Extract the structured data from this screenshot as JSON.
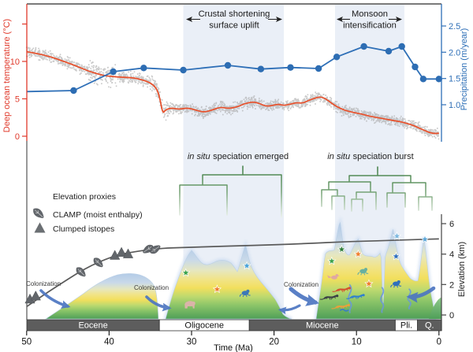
{
  "axes": {
    "temp_label": "Deep ocean temperature (°C)",
    "temp_ticks": [
      "10",
      "5",
      "0"
    ],
    "precip_label": "Precipitation (m/year)",
    "precip_ticks": [
      "2.5",
      "2.0",
      "1.5",
      "1.0"
    ],
    "elev_label": "Elevation (km)",
    "elev_ticks": [
      "6",
      "4",
      "2",
      "0"
    ],
    "time_label": "Time (Ma)",
    "time_ticks": [
      "50",
      "40",
      "30",
      "20",
      "10",
      "0"
    ]
  },
  "annotations": {
    "crustal_line1": "Crustal shortening",
    "crustal_line2": "surface uplift",
    "monsoon_line1": "Monsoon",
    "monsoon_line2": "intensification",
    "speciation_emerged_italic": "in situ",
    "speciation_emerged_rest": "speciation emerged",
    "speciation_burst_italic": "in situ",
    "speciation_burst_rest": "speciation burst",
    "colonization": "Colonization"
  },
  "legend": {
    "title": "Elevation proxies",
    "clamp": "CLAMP (moist enthalpy)",
    "clumped": "Clumped istopes"
  },
  "epochs": [
    {
      "name": "Eocene",
      "start": 50,
      "end": 33.9,
      "style": "dark"
    },
    {
      "name": "Oligocene",
      "start": 33.9,
      "end": 23,
      "style": "light"
    },
    {
      "name": "Miocene",
      "start": 23,
      "end": 5.3,
      "style": "dark"
    },
    {
      "name": "Pli.",
      "start": 5.3,
      "end": 2.6,
      "style": "light"
    },
    {
      "name": "Q.",
      "start": 2.6,
      "end": 0,
      "style": "dark"
    }
  ],
  "bands": [
    {
      "name": "crustal-shortening",
      "t_start": 31,
      "t_end": 18.8
    },
    {
      "name": "monsoon-intensification",
      "t_start": 12.6,
      "t_end": 4.2
    }
  ],
  "chart_data": [
    {
      "type": "line",
      "name": "Deep ocean temperature",
      "ylabel": "Deep ocean temperature (°C)",
      "x_unit": "Ma (older to the left)",
      "xlim": [
        50,
        0
      ],
      "ylim": [
        0,
        15
      ],
      "scatter_note": "dense gray proxy scatter (±~0.5-1.0°C) surrounds the smoothed red line; larger spread near 40-42 Ma and the 33.9 Ma Eocene-Oligocene drop",
      "x": [
        50,
        48.5,
        47,
        45.5,
        44,
        42.5,
        41,
        40,
        38.5,
        37,
        36,
        35,
        34.3,
        33.9,
        33.5,
        33.2,
        32.5,
        31.5,
        30.5,
        29.5,
        28.5,
        27.5,
        26.5,
        25.5,
        24.5,
        23.5,
        22.5,
        21.8,
        21,
        20.2,
        19.5,
        18.8,
        18,
        17.2,
        16.5,
        15.8,
        15,
        14.3,
        13.6,
        13,
        12.3,
        11.5,
        10.5,
        9.5,
        8.5,
        7.5,
        6.5,
        5.5,
        4.5,
        3.5,
        2.8,
        2,
        1.2,
        0.5,
        0
      ],
      "y": [
        11.3,
        11,
        10.6,
        10,
        9.4,
        8.7,
        8.2,
        8,
        7.9,
        7.8,
        7.55,
        7.15,
        6.5,
        5.4,
        3,
        3.5,
        3.8,
        3.6,
        3.8,
        3.5,
        3.2,
        3.5,
        3.9,
        3.7,
        3.9,
        4.4,
        4.6,
        4.4,
        4,
        4.1,
        4.3,
        4.1,
        4.3,
        4.5,
        4.4,
        4.8,
        5.1,
        5.3,
        4.9,
        4.4,
        3.9,
        3.5,
        3.2,
        3,
        2.7,
        2.5,
        2.3,
        2.1,
        1.9,
        1.6,
        1.3,
        0.9,
        0.5,
        0.35,
        0.4
      ]
    },
    {
      "type": "line+markers",
      "name": "Precipitation",
      "ylabel": "Precipitation (m/year)",
      "x_unit": "Ma",
      "ylim": [
        1.0,
        2.5
      ],
      "first_marker_index": 1,
      "x": [
        50,
        44.3,
        39.5,
        35.8,
        31,
        25.6,
        21.6,
        18,
        14.6,
        12.4,
        9.1,
        6.1,
        4.5,
        2.9,
        1.9,
        0
      ],
      "y": [
        1.25,
        1.27,
        1.63,
        1.7,
        1.66,
        1.75,
        1.68,
        1.71,
        1.69,
        1.91,
        2.11,
        2.02,
        2.11,
        1.72,
        1.49,
        1.49
      ]
    },
    {
      "type": "line",
      "name": "Elevation trend",
      "ylabel": "Elevation (km)",
      "x_unit": "Ma",
      "ylim": [
        0,
        6
      ],
      "x": [
        50,
        48,
        46,
        44,
        42,
        40,
        38.5,
        37,
        35,
        33,
        30,
        27,
        24,
        21,
        18,
        15,
        12,
        9,
        6,
        3,
        0
      ],
      "y": [
        0.55,
        1.3,
        2,
        2.7,
        3.3,
        3.75,
        4,
        4.15,
        4.3,
        4.4,
        4.45,
        4.5,
        4.55,
        4.6,
        4.65,
        4.72,
        4.8,
        4.85,
        4.9,
        4.95,
        5
      ],
      "markers": {
        "clamp": [
          {
            "t": 43.4,
            "km": 2.82,
            "rot": -45
          },
          {
            "t": 41.3,
            "km": 3.44,
            "rot": -45
          },
          {
            "t": 35.3,
            "km": 4.32,
            "rot": 55
          },
          {
            "t": 34.4,
            "km": 4.32,
            "rot": -125
          }
        ],
        "clumped": [
          {
            "t": 49.6,
            "km": 1.05
          },
          {
            "t": 48.9,
            "km": 1.25
          },
          {
            "t": 39.3,
            "km": 3.92
          },
          {
            "t": 38.5,
            "km": 4.12
          },
          {
            "t": 37.7,
            "km": 4.02
          }
        ]
      }
    }
  ],
  "wildlife": [
    {
      "kind": "star",
      "color": "#3ca24b",
      "t": 30.7,
      "km": 2.77
    },
    {
      "kind": "star",
      "color": "#f07f2e",
      "t": 26.9,
      "km": 1.69
    },
    {
      "kind": "star",
      "color": "#4aa3d8",
      "t": 23.3,
      "km": 3.23
    },
    {
      "kind": "bear",
      "color": "#dbb4a9",
      "t": 30.2,
      "km": 0.67
    },
    {
      "kind": "frog",
      "color": "#3c78b8",
      "t": 23.5,
      "km": 1.44
    },
    {
      "kind": "star",
      "color": "#3ca24b",
      "t": 13,
      "km": 3.54
    },
    {
      "kind": "star",
      "color": "#2e7d3a",
      "t": 11.8,
      "km": 4.31
    },
    {
      "kind": "star",
      "color": "#f07f2e",
      "t": 9.8,
      "km": 4
    },
    {
      "kind": "star",
      "color": "#f07f2e",
      "t": 8.5,
      "km": 2.05
    },
    {
      "kind": "star",
      "color": "#2f6fbd",
      "t": 5.2,
      "km": 3.85
    },
    {
      "kind": "star",
      "color": "#7db8e0",
      "t": 5.1,
      "km": 5.18
    },
    {
      "kind": "star",
      "color": "#5ba7d9",
      "t": 1.7,
      "km": 4.97
    },
    {
      "kind": "frog",
      "color": "#68b0a0",
      "t": 9.2,
      "km": 2.87
    },
    {
      "kind": "frog",
      "color": "#2f6fbd",
      "t": 5.2,
      "km": 2.05
    },
    {
      "kind": "bird",
      "color": "#e0a8a2",
      "t": 12.7,
      "km": 2.46
    },
    {
      "kind": "lizard",
      "color": "#3a3f44",
      "t": 13.1,
      "km": 1.23
    },
    {
      "kind": "lizard",
      "color": "#d4502e",
      "t": 11.6,
      "km": 1.74
    },
    {
      "kind": "lizard",
      "color": "#2f7fd0",
      "t": 9.9,
      "km": 1.28
    },
    {
      "kind": "lizard",
      "color": "#e8a13c",
      "t": 11.7,
      "km": 0.62
    },
    {
      "kind": "fish",
      "color": "#3a7fc0",
      "t": 11.5,
      "km": 0.31
    }
  ],
  "rivers": [
    {
      "t": 10.8,
      "km": 1.97,
      "len": 1
    },
    {
      "t": 6.9,
      "km": 1.8,
      "len": 0.9
    },
    {
      "t": 3.6,
      "km": 1.7,
      "len": 0.72
    }
  ],
  "colors": {
    "temperature": "#e8502b",
    "temp_axis": "#e0392b",
    "precipitation": "#2e6fb7",
    "precip_axis": "#2e6fb7",
    "scatter": "#a6a6a6",
    "elevation_line": "#5a5a5a",
    "proxy": "#62666b",
    "band": "#eaeff7",
    "tree": "#3f7d44",
    "epoch_dark": "#5d5d5d",
    "arrow_blue": "#4d76c2",
    "river": "#6a97d8"
  }
}
